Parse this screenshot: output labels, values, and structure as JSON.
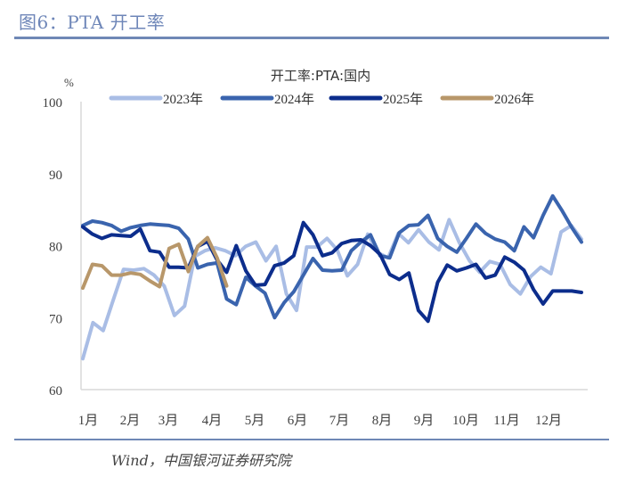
{
  "figure": {
    "title": "图6：PTA 开工率",
    "source": "Wind，中国银河证券研究院"
  },
  "chart_data": {
    "type": "line",
    "title": "开工率:PTA:国内",
    "ylabel": "%",
    "xlabel": "",
    "ylim": [
      60,
      100
    ],
    "yticks": [
      60,
      70,
      80,
      90,
      100
    ],
    "x_tick_labels": [
      "1月",
      "2月",
      "3月",
      "4月",
      "5月",
      "6月",
      "7月",
      "8月",
      "9月",
      "10月",
      "11月",
      "12月"
    ],
    "x_unit": "week of year (1-48)",
    "grid": false,
    "legend_position": "top",
    "series": [
      {
        "name": "2023年",
        "color": "#A9BDE5",
        "values": [
          64.3,
          69.3,
          68.2,
          72.5,
          76.7,
          76.6,
          76.8,
          75.9,
          74.4,
          70.3,
          71.6,
          78.5,
          79.3,
          79.7,
          79.3,
          78.6,
          79.9,
          80.5,
          77.9,
          79.9,
          73.3,
          71.0,
          79.8,
          79.8,
          81.0,
          79.4,
          75.8,
          77.4,
          81.6,
          79.0,
          78.3,
          81.7,
          80.4,
          82.2,
          80.5,
          79.4,
          83.6,
          80.4,
          77.9,
          76.3,
          77.8,
          77.4,
          74.6,
          73.3,
          75.7,
          77.0,
          76.1,
          81.9,
          82.8,
          80.9
        ]
      },
      {
        "name": "2024年",
        "color": "#3A64AE",
        "values": [
          82.8,
          83.4,
          83.2,
          82.8,
          82.0,
          82.5,
          82.8,
          83.0,
          82.9,
          82.8,
          82.4,
          80.9,
          76.9,
          77.4,
          77.6,
          72.6,
          71.8,
          75.6,
          74.4,
          73.4,
          70.0,
          72.1,
          73.6,
          75.9,
          78.2,
          76.6,
          76.5,
          76.6,
          79.3,
          80.5,
          81.5,
          78.6,
          78.3,
          81.8,
          82.8,
          82.9,
          84.2,
          81.0,
          79.9,
          79.1,
          81.0,
          83.0,
          81.7,
          80.9,
          80.5,
          79.3,
          82.6,
          81.1,
          84.2,
          86.9,
          84.8,
          82.5,
          80.5
        ]
      },
      {
        "name": "2025年",
        "color": "#0C2D8C",
        "values": [
          82.6,
          81.6,
          81.0,
          81.5,
          81.4,
          81.3,
          82.3,
          79.3,
          79.1,
          77.0,
          77.0,
          76.9,
          79.9,
          80.6,
          78.0,
          76.3,
          80.0,
          76.5,
          74.5,
          74.6,
          77.2,
          77.6,
          78.6,
          83.2,
          81.5,
          78.6,
          79.0,
          80.3,
          80.7,
          80.8,
          80.0,
          78.8,
          76.0,
          75.3,
          76.2,
          71.0,
          69.5,
          74.9,
          77.3,
          76.5,
          76.9,
          77.4,
          75.5,
          75.9,
          78.4,
          77.7,
          76.6,
          73.9,
          71.9,
          73.7,
          73.7,
          73.7,
          73.5
        ]
      },
      {
        "name": "2026年",
        "color": "#B8976A",
        "values": [
          74.1,
          77.4,
          77.2,
          75.9,
          75.9,
          76.2,
          76.0,
          75.1,
          74.3,
          79.6,
          80.2,
          76.4,
          79.9,
          81.1,
          78.3,
          74.4
        ]
      }
    ]
  }
}
